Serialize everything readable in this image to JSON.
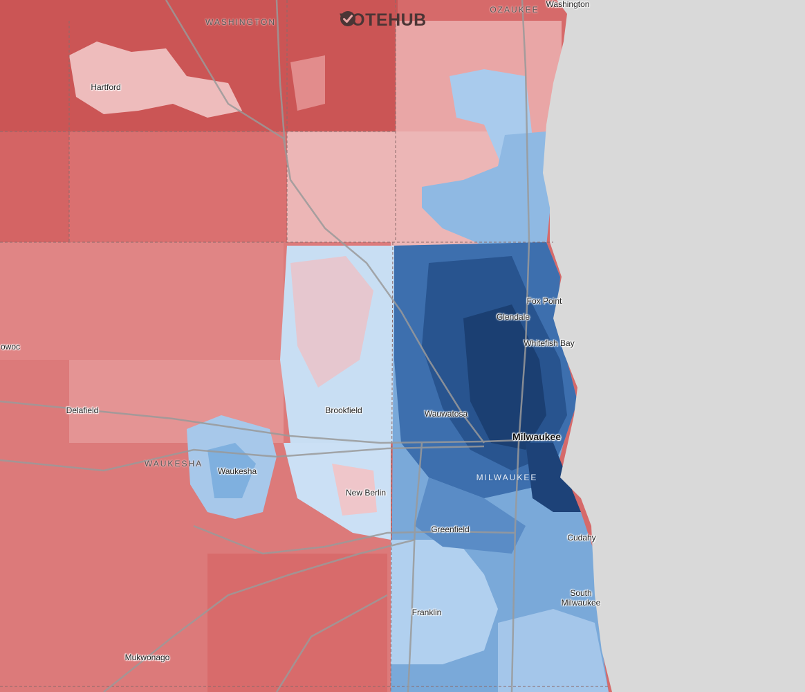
{
  "brand": {
    "name": "VOTEHUB",
    "icon": "check-circle-icon"
  },
  "colors": {
    "water": "#d9d9d9",
    "rural_red": "#cf5e5e",
    "red_mid": "#dc7777",
    "red_light": "#e9aaaa",
    "red_pale": "#f1cccc",
    "blue_pale": "#cfe2f6",
    "blue_light": "#a9cbed",
    "blue_mid": "#6b9fd3",
    "blue_dark": "#2c5f9e",
    "blue_darkest": "#17386a"
  },
  "places": [
    {
      "id": "hartford",
      "name": "Hartford"
    },
    {
      "id": "washington-town",
      "name": "Washington"
    },
    {
      "id": "fox-point",
      "name": "Fox Point"
    },
    {
      "id": "glendale",
      "name": "Glendale"
    },
    {
      "id": "whitefish-bay",
      "name": "Whitefish Bay"
    },
    {
      "id": "delafield",
      "name": "Delafield"
    },
    {
      "id": "brookfield",
      "name": "Brookfield"
    },
    {
      "id": "wauwatosa",
      "name": "Wauwatosa"
    },
    {
      "id": "milwaukee",
      "name": "Milwaukee"
    },
    {
      "id": "waukesha",
      "name": "Waukesha"
    },
    {
      "id": "new-berlin",
      "name": "New Berlin"
    },
    {
      "id": "greenfield",
      "name": "Greenfield"
    },
    {
      "id": "cudahy",
      "name": "Cudahy"
    },
    {
      "id": "south-milwaukee",
      "name": "South Milwaukee"
    },
    {
      "id": "franklin",
      "name": "Franklin"
    },
    {
      "id": "mukwonago",
      "name": "Mukwonago"
    },
    {
      "id": "owoc",
      "name": "owoc"
    }
  ],
  "counties": [
    {
      "id": "washington",
      "name": "WASHINGTON"
    },
    {
      "id": "ozaukee",
      "name": "OZAUKEE"
    },
    {
      "id": "waukesha",
      "name": "WAUKESHA"
    },
    {
      "id": "milwaukee",
      "name": "MILWAUKEE"
    }
  ]
}
